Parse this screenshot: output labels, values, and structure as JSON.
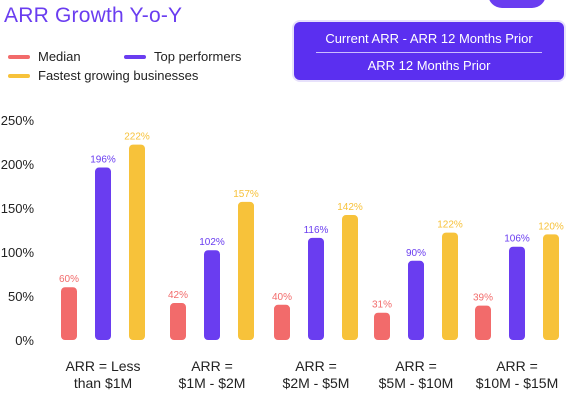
{
  "title": "ARR Growth Y-o-Y",
  "legend": [
    {
      "label": "Median",
      "color": "#f26b6b"
    },
    {
      "label": "Top performers",
      "color": "#6a3df0"
    },
    {
      "label": "Fastest growing businesses",
      "color": "#f7c23a"
    }
  ],
  "formula": {
    "numerator": "Current ARR - ARR 12 Months Prior",
    "denominator": "ARR 12 Months Prior"
  },
  "chart_data": {
    "type": "bar",
    "categories": [
      [
        "ARR = Less",
        "than $1M"
      ],
      [
        "ARR =",
        "$1M - $2M"
      ],
      [
        "ARR =",
        "$2M - $5M"
      ],
      [
        "ARR =",
        "$5M - $10M"
      ],
      [
        "ARR =",
        "$10M - $15M"
      ]
    ],
    "series": [
      {
        "name": "Median",
        "values": [
          60,
          42,
          40,
          31,
          39
        ],
        "labels": [
          "60%",
          "42%",
          "40%",
          "31%",
          "39%"
        ],
        "color": "#f26b6b"
      },
      {
        "name": "Top performers",
        "values": [
          196,
          102,
          116,
          90,
          106
        ],
        "labels": [
          "196%",
          "102%",
          "116%",
          "90%",
          "106%"
        ],
        "color": "#6a3df0"
      },
      {
        "name": "Fastest growing businesses",
        "values": [
          222,
          157,
          142,
          122,
          120
        ],
        "labels": [
          "222%",
          "157%",
          "142%",
          "122%",
          "120%"
        ],
        "color": "#f7c23a"
      }
    ],
    "yticks": [
      "0%",
      "50%",
      "100%",
      "150%",
      "200%",
      "250%"
    ],
    "ylim": [
      0,
      250
    ],
    "grid": false,
    "legend_position": "top-left"
  }
}
